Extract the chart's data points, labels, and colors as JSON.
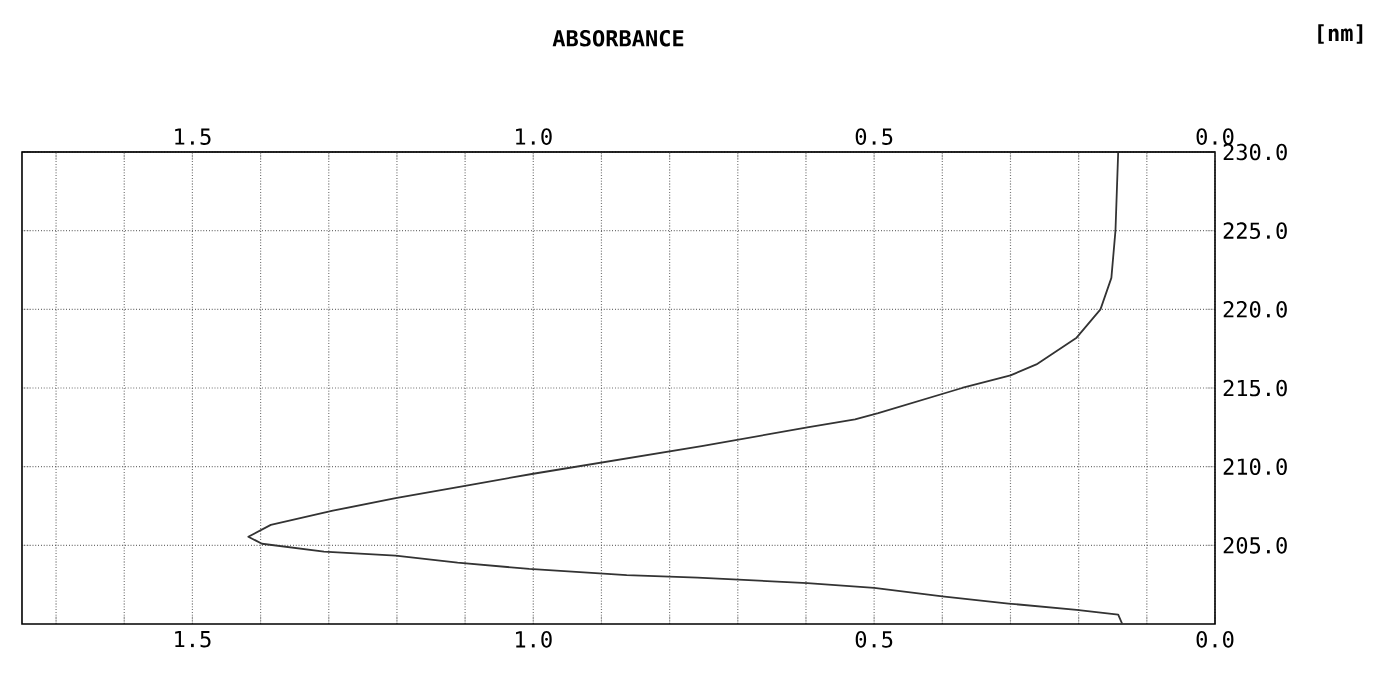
{
  "chart_data": {
    "type": "line",
    "x2label": "ABSORBANCE",
    "ylabel": "[nm]",
    "xlim": [
      1.75,
      0
    ],
    "x2lim": [
      1.75,
      0
    ],
    "ylim": [
      200,
      230
    ],
    "xticks": [
      {
        "value": 0,
        "label": "0.0"
      },
      {
        "value": 0.1,
        "label": null
      },
      {
        "value": 0.2,
        "label": null
      },
      {
        "value": 0.3,
        "label": null
      },
      {
        "value": 0.4,
        "label": null
      },
      {
        "value": 0.5,
        "label": "0.5"
      },
      {
        "value": 0.6,
        "label": null
      },
      {
        "value": 0.7,
        "label": null
      },
      {
        "value": 0.8,
        "label": null
      },
      {
        "value": 0.9,
        "label": null
      },
      {
        "value": 1.0,
        "label": "1.0"
      },
      {
        "value": 1.1,
        "label": null
      },
      {
        "value": 1.2,
        "label": null
      },
      {
        "value": 1.3,
        "label": null
      },
      {
        "value": 1.4,
        "label": null
      },
      {
        "value": 1.5,
        "label": "1.5"
      },
      {
        "value": 1.6,
        "label": null
      },
      {
        "value": 1.7,
        "label": null
      }
    ],
    "x2ticks": [
      {
        "value": 0,
        "label": "0.0"
      },
      {
        "value": 0.1,
        "label": null
      },
      {
        "value": 0.2,
        "label": null
      },
      {
        "value": 0.3,
        "label": null
      },
      {
        "value": 0.4,
        "label": null
      },
      {
        "value": 0.5,
        "label": "0.5"
      },
      {
        "value": 0.6,
        "label": null
      },
      {
        "value": 0.7,
        "label": null
      },
      {
        "value": 0.8,
        "label": null
      },
      {
        "value": 0.9,
        "label": null
      },
      {
        "value": 1.0,
        "label": "1.0"
      },
      {
        "value": 1.1,
        "label": null
      },
      {
        "value": 1.2,
        "label": null
      },
      {
        "value": 1.3,
        "label": null
      },
      {
        "value": 1.4,
        "label": null
      },
      {
        "value": 1.5,
        "label": "1.5"
      },
      {
        "value": 1.6,
        "label": null
      },
      {
        "value": 1.7,
        "label": null
      }
    ],
    "yticks": [
      {
        "value": 205,
        "label": "205.0"
      },
      {
        "value": 210,
        "label": "210.0"
      },
      {
        "value": 215,
        "label": "215.0"
      },
      {
        "value": 220,
        "label": "220.0"
      },
      {
        "value": 225,
        "label": "225.0"
      },
      {
        "value": 230,
        "label": "230.0"
      }
    ],
    "grid": true,
    "marker": "none",
    "line_style": "solid",
    "series": [
      {
        "color": "#333333",
        "x": [
          0.136,
          0.142,
          0.203,
          0.303,
          0.4,
          0.5,
          0.598,
          0.759,
          0.863,
          1.006,
          1.111,
          1.202,
          1.307,
          1.398,
          1.418,
          1.385,
          1.294,
          1.202,
          1.098,
          1.0,
          0.753,
          0.598,
          0.528,
          0.494,
          0.371,
          0.3,
          0.262,
          0.203,
          0.168,
          0.152,
          0.146,
          0.142
        ],
        "values": [
          200.0,
          200.6,
          200.9,
          201.3,
          201.75,
          202.3,
          202.6,
          202.95,
          203.1,
          203.5,
          203.9,
          204.35,
          204.6,
          205.1,
          205.55,
          206.3,
          207.2,
          208.0,
          208.8,
          209.55,
          211.3,
          212.5,
          213.0,
          213.4,
          215.0,
          215.8,
          216.5,
          218.2,
          220.0,
          222.0,
          225.0,
          230.0
        ]
      }
    ]
  }
}
